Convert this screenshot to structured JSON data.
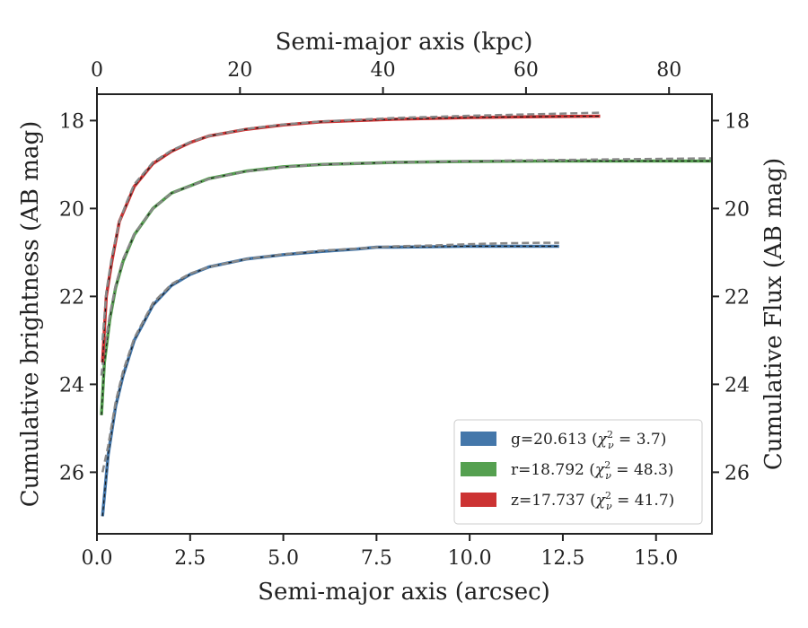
{
  "chart_data": {
    "type": "line",
    "xlabel": "Semi-major axis (arcsec)",
    "x_top_label": "Semi-major axis (kpc)",
    "ylabel": "Cumulative brightness (AB mag)",
    "ylabel_right": "Cumulative Flux (AB mag)",
    "xlim": [
      0,
      16.5
    ],
    "x_top_lim": [
      0,
      86
    ],
    "ylim": [
      27.4,
      17.4
    ],
    "y_inverted": true,
    "x_ticks": [
      "0.0",
      "2.5",
      "5.0",
      "7.5",
      "10.0",
      "12.5",
      "15.0"
    ],
    "x_top_ticks": [
      "0",
      "20",
      "40",
      "60",
      "80"
    ],
    "y_ticks": [
      "18",
      "20",
      "22",
      "24",
      "26"
    ],
    "y_right_ticks": [
      "18",
      "20",
      "22",
      "24",
      "26"
    ],
    "grid": false,
    "legend_position": "lower-right",
    "model_line_style": "dashed gray",
    "series": [
      {
        "name": "g=20.613",
        "chi_label": "3.7",
        "color": "#4477aa",
        "x": [
          0.15,
          0.3,
          0.5,
          0.7,
          1.0,
          1.5,
          2.0,
          2.5,
          3.0,
          4.0,
          5.0,
          6.0,
          7.0,
          7.5,
          8.0,
          9.0,
          10.0,
          11.0,
          12.0,
          12.4
        ],
        "y": [
          27.0,
          25.6,
          24.5,
          23.8,
          23.0,
          22.2,
          21.75,
          21.5,
          21.33,
          21.15,
          21.05,
          20.98,
          20.92,
          20.88,
          20.88,
          20.87,
          20.86,
          20.86,
          20.86,
          20.86
        ],
        "model": [
          26.0,
          25.4,
          24.4,
          23.7,
          22.95,
          22.15,
          21.72,
          21.48,
          21.33,
          21.15,
          21.04,
          20.96,
          20.91,
          20.88,
          20.86,
          20.84,
          20.81,
          20.79,
          20.78,
          20.78
        ]
      },
      {
        "name": "r=18.792",
        "chi_label": "48.3",
        "color": "#55a050",
        "x": [
          0.12,
          0.2,
          0.35,
          0.5,
          0.7,
          1.0,
          1.5,
          2.0,
          3.0,
          4.0,
          5.0,
          6.0,
          8.0,
          10.0,
          12.0,
          14.0,
          16.5
        ],
        "y": [
          24.7,
          23.5,
          22.5,
          21.8,
          21.2,
          20.6,
          20.0,
          19.65,
          19.32,
          19.15,
          19.05,
          19.0,
          18.95,
          18.93,
          18.92,
          18.92,
          18.92
        ],
        "model": [
          23.8,
          23.2,
          22.4,
          21.75,
          21.15,
          20.58,
          20.0,
          19.65,
          19.33,
          19.16,
          19.06,
          19.0,
          18.95,
          18.92,
          18.9,
          18.88,
          18.86
        ]
      },
      {
        "name": "z=17.737",
        "chi_label": "41.7",
        "color": "#cc3333",
        "x": [
          0.15,
          0.25,
          0.4,
          0.6,
          0.8,
          1.0,
          1.5,
          2.0,
          2.5,
          3.0,
          4.0,
          5.0,
          6.0,
          8.0,
          10.0,
          12.0,
          13.5
        ],
        "y": [
          23.5,
          22.0,
          21.2,
          20.3,
          19.9,
          19.5,
          18.98,
          18.7,
          18.5,
          18.35,
          18.2,
          18.1,
          18.03,
          17.97,
          17.93,
          17.91,
          17.9
        ],
        "model": [
          23.0,
          21.9,
          21.1,
          20.3,
          19.85,
          19.45,
          18.95,
          18.68,
          18.49,
          18.35,
          18.19,
          18.09,
          18.02,
          17.94,
          17.89,
          17.85,
          17.82
        ]
      }
    ]
  }
}
